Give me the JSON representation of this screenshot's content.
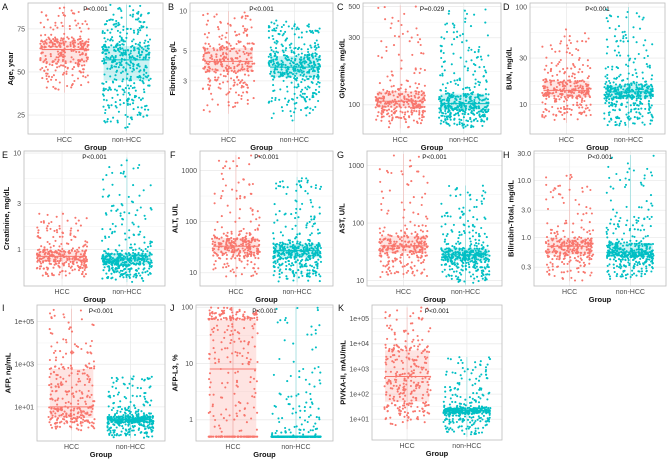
{
  "colors": {
    "HCC": "#F8766D",
    "non-HCC": "#00BFC4"
  },
  "chart_data": [
    {
      "type": "box-jitter",
      "panel": "A",
      "ylabel": "Age, year",
      "xlabel": "Group",
      "categories": [
        "HCC",
        "non-HCC"
      ],
      "pvalue": "P<0.001",
      "scale": "linear",
      "ylim": [
        14,
        90
      ],
      "yticks": [
        25,
        50,
        75
      ],
      "ytick_labels": [
        "25",
        "50",
        "75"
      ],
      "groups": [
        {
          "name": "HCC",
          "median": 63,
          "q1": 55,
          "q3": 68,
          "min": 38,
          "max": 88
        },
        {
          "name": "non-HCC",
          "median": 57,
          "q1": 45,
          "q3": 65,
          "min": 16,
          "max": 89
        }
      ]
    },
    {
      "type": "box-jitter",
      "panel": "B",
      "ylabel": "Fibrinogen, g/L",
      "xlabel": "Group",
      "categories": [
        "HCC",
        "non-HCC"
      ],
      "pvalue": "P<0.001",
      "scale": "log",
      "ylim": [
        1.2,
        11.5
      ],
      "yticks": [
        3,
        5,
        10
      ],
      "ytick_labels": [
        "3",
        "5",
        "10"
      ],
      "groups": [
        {
          "name": "HCC",
          "median": 4.2,
          "q1": 3.5,
          "q3": 5.3,
          "min": 1.7,
          "max": 10
        },
        {
          "name": "non-HCC",
          "median": 3.8,
          "q1": 3.2,
          "q3": 4.6,
          "min": 1.5,
          "max": 8.5
        }
      ]
    },
    {
      "type": "box-jitter",
      "panel": "C",
      "ylabel": "Glycemia, mg/dL",
      "xlabel": "Group",
      "categories": [
        "HCC",
        "non-HCC"
      ],
      "pvalue": "P=0.029",
      "scale": "log",
      "ylim": [
        62,
        530
      ],
      "yticks": [
        100,
        300,
        500
      ],
      "ytick_labels": [
        "100",
        "300",
        "500"
      ],
      "groups": [
        {
          "name": "HCC",
          "median": 106,
          "q1": 95,
          "q3": 125,
          "min": 68,
          "max": 510
        },
        {
          "name": "non-HCC",
          "median": 102,
          "q1": 92,
          "q3": 120,
          "min": 68,
          "max": 480
        }
      ]
    },
    {
      "type": "box-jitter",
      "panel": "D",
      "ylabel": "BUN, mg/dL",
      "xlabel": "Group",
      "categories": [
        "HCC",
        "non-HCC"
      ],
      "pvalue": "P<0.001",
      "scale": "log",
      "ylim": [
        5,
        110
      ],
      "yticks": [
        10,
        30,
        100
      ],
      "ytick_labels": [
        "10",
        "30",
        "100"
      ],
      "groups": [
        {
          "name": "HCC",
          "median": 14,
          "q1": 12,
          "q3": 17.5,
          "min": 6.5,
          "max": 60
        },
        {
          "name": "non-HCC",
          "median": 13.5,
          "q1": 11.5,
          "q3": 16,
          "min": 5.8,
          "max": 100
        }
      ]
    },
    {
      "type": "box-jitter",
      "panel": "E",
      "ylabel": "Creatinine, mg/dL",
      "xlabel": "Group",
      "categories": [
        "HCC",
        "non-HCC"
      ],
      "pvalue": "P<0.001",
      "scale": "log",
      "ylim": [
        0.42,
        10.5
      ],
      "yticks": [
        1,
        3,
        10
      ],
      "ytick_labels": [
        "1",
        "3",
        "10"
      ],
      "groups": [
        {
          "name": "HCC",
          "median": 0.85,
          "q1": 0.75,
          "q3": 0.97,
          "min": 0.5,
          "max": 2.5
        },
        {
          "name": "non-HCC",
          "median": 0.8,
          "q1": 0.7,
          "q3": 0.92,
          "min": 0.46,
          "max": 9
        }
      ]
    },
    {
      "type": "box-jitter",
      "panel": "F",
      "ylabel": "ALT, U/L",
      "xlabel": "Group",
      "categories": [
        "HCC",
        "non-HCC"
      ],
      "pvalue": "P<0.001",
      "scale": "log",
      "ylim": [
        5.5,
        2400
      ],
      "yticks": [
        10,
        100,
        1000
      ],
      "ytick_labels": [
        "10",
        "100",
        "1000"
      ],
      "groups": [
        {
          "name": "HCC",
          "median": 33,
          "q1": 24,
          "q3": 48,
          "min": 8,
          "max": 2000
        },
        {
          "name": "non-HCC",
          "median": 27,
          "q1": 20,
          "q3": 37,
          "min": 6.5,
          "max": 750
        }
      ]
    },
    {
      "type": "box-jitter",
      "panel": "G",
      "ylabel": "AST, U/L",
      "xlabel": "Group",
      "categories": [
        "HCC",
        "non-HCC"
      ],
      "pvalue": "P<0.001",
      "scale": "log",
      "ylim": [
        8,
        1800
      ],
      "yticks": [
        10,
        100,
        1000
      ],
      "ytick_labels": [
        "10",
        "100",
        "1000"
      ],
      "groups": [
        {
          "name": "HCC",
          "median": 40,
          "q1": 30,
          "q3": 60,
          "min": 11,
          "max": 1600
        },
        {
          "name": "non-HCC",
          "median": 28,
          "q1": 22,
          "q3": 36,
          "min": 8.5,
          "max": 450
        }
      ]
    },
    {
      "type": "box-jitter",
      "panel": "H",
      "ylabel": "Bilirubin-Total, mg/dL",
      "xlabel": "Group",
      "categories": [
        "HCC",
        "non-HCC"
      ],
      "pvalue": "P<0.001",
      "scale": "log",
      "ylim": [
        0.14,
        33
      ],
      "yticks": [
        0.3,
        1,
        3,
        10,
        30
      ],
      "ytick_labels": [
        "0.3",
        "1.0",
        "3.0",
        "10.0",
        "30.0"
      ],
      "groups": [
        {
          "name": "HCC",
          "median": 0.7,
          "q1": 0.5,
          "q3": 0.95,
          "min": 0.17,
          "max": 13
        },
        {
          "name": "non-HCC",
          "median": 0.55,
          "q1": 0.45,
          "q3": 0.8,
          "min": 0.18,
          "max": 28
        }
      ]
    },
    {
      "type": "box-jitter",
      "panel": "I",
      "ylabel": "AFP, ng/mL",
      "xlabel": "Group",
      "categories": [
        "HCC",
        "non-HCC"
      ],
      "pvalue": "P<0.001",
      "scale": "log",
      "ylim": [
        0.25,
        600000
      ],
      "yticks": [
        10,
        1000,
        100000
      ],
      "ytick_labels": [
        "1e+01",
        "1e+03",
        "1e+05"
      ],
      "groups": [
        {
          "name": "HCC",
          "median": 10,
          "q1": 3,
          "q3": 600,
          "min": 0.8,
          "max": 400000
        },
        {
          "name": "non-HCC",
          "median": 2.5,
          "q1": 1.8,
          "q3": 3.5,
          "min": 0.35,
          "max": 300
        }
      ]
    },
    {
      "type": "box-jitter",
      "panel": "J",
      "ylabel": "AFP-L3, %",
      "xlabel": "Group",
      "categories": [
        "HCC",
        "non-HCC"
      ],
      "pvalue": "P<0.001",
      "scale": "log",
      "ylim": [
        0.42,
        110
      ],
      "yticks": [
        1,
        10,
        100
      ],
      "ytick_labels": [
        "1",
        "10",
        "100"
      ],
      "groups": [
        {
          "name": "HCC",
          "median": 8,
          "q1": 0.5,
          "q3": 60,
          "min": 0.5,
          "max": 100
        },
        {
          "name": "non-HCC",
          "median": 0.5,
          "q1": 0.5,
          "q3": 0.5,
          "min": 0.5,
          "max": 100
        }
      ]
    },
    {
      "type": "box-jitter",
      "panel": "K",
      "ylabel": "PIVKA-II, mAU/mL",
      "xlabel": "Group",
      "categories": [
        "HCC",
        "non-HCC"
      ],
      "pvalue": "P<0.001",
      "scale": "log",
      "ylim": [
        1.5,
        350000
      ],
      "yticks": [
        10,
        100,
        1000,
        10000,
        100000
      ],
      "ytick_labels": [
        "1e+01",
        "1e+02",
        "1e+03",
        "1e+04",
        "1e+05"
      ],
      "groups": [
        {
          "name": "HCC",
          "median": 500,
          "q1": 50,
          "q3": 5500,
          "min": 4,
          "max": 280000
        },
        {
          "name": "non-HCC",
          "median": 22,
          "q1": 17,
          "q3": 28,
          "min": 2,
          "max": 3000
        }
      ]
    }
  ]
}
